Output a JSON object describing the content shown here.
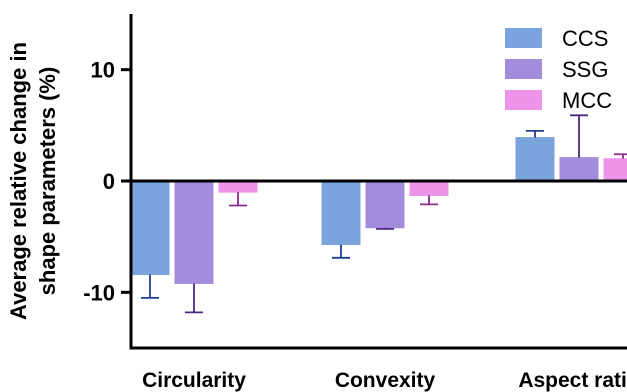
{
  "chart_data": {
    "type": "bar",
    "categories": [
      "Circularity",
      "Convexity",
      "Aspect ratio"
    ],
    "ylabel_lines": [
      "Average relative change in",
      "shape parameters (%)"
    ],
    "yticks": [
      "10",
      "0",
      "-10"
    ],
    "ylim": [
      -15,
      15
    ],
    "legend_position": "top-right",
    "error_bars": "one-sided (away from zero)",
    "series": [
      {
        "name": "CCS",
        "color": "#7ba3dc",
        "errcolor": "#1f3f8f",
        "values": [
          -8.4,
          -5.7,
          3.9
        ],
        "errors": [
          2.1,
          1.2,
          0.6
        ]
      },
      {
        "name": "SSG",
        "color": "#a48cdc",
        "errcolor": "#4a2a80",
        "values": [
          -9.2,
          -4.2,
          2.1
        ],
        "errors": [
          2.6,
          0.1,
          3.8
        ]
      },
      {
        "name": "MCC",
        "color": "#ee93ea",
        "errcolor": "#8a2a8a",
        "values": [
          -1.0,
          -1.3,
          2.0
        ],
        "errors": [
          1.2,
          0.8,
          0.4
        ]
      }
    ]
  }
}
